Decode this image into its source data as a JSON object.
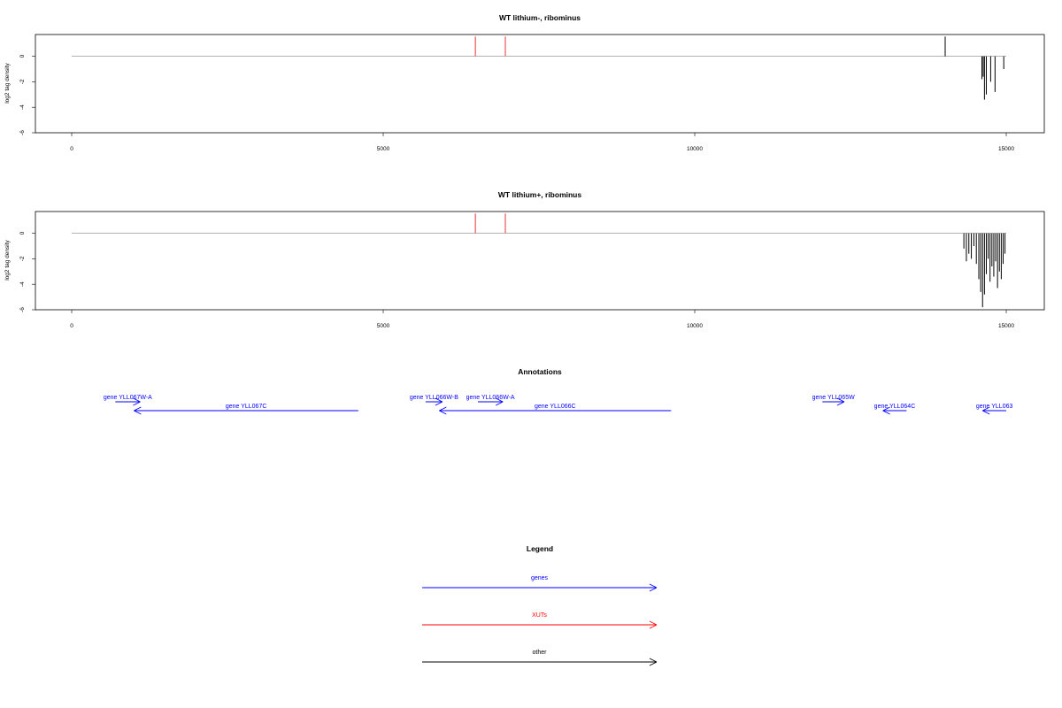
{
  "colors": {
    "genes": "#0000ff",
    "xuts": "#ff0000",
    "xut_bar": "#f08080",
    "other": "#000000",
    "baseline": "#999999",
    "signal": "#000000"
  },
  "chart_data": [
    {
      "type": "bar",
      "title": "WT lithium-, ribominus",
      "xlabel": "",
      "ylabel": "log2 tag density",
      "xlim": [
        0,
        15000
      ],
      "ylim": [
        -6,
        1.5
      ],
      "x_ticks": [
        0,
        5000,
        10000,
        15000
      ],
      "y_ticks": [
        0,
        -2,
        -4,
        -6
      ],
      "baseline": {
        "from": 0,
        "to": 15000,
        "y": 0
      },
      "xut_marks": [
        {
          "x": 6480,
          "y": 1.55
        },
        {
          "x": 6960,
          "y": 1.55
        }
      ],
      "other_marks": [
        {
          "x": 14020,
          "y": 1.55
        }
      ],
      "signal": [
        {
          "x": 14610,
          "y": -1.8
        },
        {
          "x": 14630,
          "y": -1.6
        },
        {
          "x": 14650,
          "y": -3.4
        },
        {
          "x": 14680,
          "y": -3.0
        },
        {
          "x": 14750,
          "y": -2.0
        },
        {
          "x": 14820,
          "y": -2.8
        },
        {
          "x": 14960,
          "y": -1.0
        }
      ]
    },
    {
      "type": "bar",
      "title": "WT lithium+, ribominus",
      "xlabel": "",
      "ylabel": "log2 tag density",
      "xlim": [
        0,
        15000
      ],
      "ylim": [
        -6,
        1.5
      ],
      "x_ticks": [
        0,
        5000,
        10000,
        15000
      ],
      "y_ticks": [
        0,
        -2,
        -4,
        -6
      ],
      "baseline": {
        "from": 0,
        "to": 15000,
        "y": 0
      },
      "xut_marks": [
        {
          "x": 6480,
          "y": 1.55
        },
        {
          "x": 6960,
          "y": 1.55
        }
      ],
      "other_marks": [],
      "signal": [
        {
          "x": 14320,
          "y": -1.2
        },
        {
          "x": 14360,
          "y": -2.2
        },
        {
          "x": 14400,
          "y": -1.6
        },
        {
          "x": 14440,
          "y": -2.0
        },
        {
          "x": 14480,
          "y": -1.0
        },
        {
          "x": 14520,
          "y": -2.4
        },
        {
          "x": 14560,
          "y": -3.6
        },
        {
          "x": 14590,
          "y": -4.6
        },
        {
          "x": 14620,
          "y": -5.8
        },
        {
          "x": 14650,
          "y": -4.8
        },
        {
          "x": 14680,
          "y": -3.2
        },
        {
          "x": 14710,
          "y": -2.0
        },
        {
          "x": 14740,
          "y": -3.8
        },
        {
          "x": 14770,
          "y": -2.6
        },
        {
          "x": 14800,
          "y": -3.4
        },
        {
          "x": 14830,
          "y": -2.2
        },
        {
          "x": 14860,
          "y": -4.3
        },
        {
          "x": 14890,
          "y": -3.0
        },
        {
          "x": 14920,
          "y": -3.6
        },
        {
          "x": 14950,
          "y": -2.4
        },
        {
          "x": 14980,
          "y": -1.6
        }
      ]
    },
    {
      "type": "annotation-track",
      "title": "Annotations",
      "xlim": [
        0,
        15000
      ],
      "genes": [
        {
          "label": "gene YLL067W-A",
          "start": 700,
          "end": 1100,
          "row": 1
        },
        {
          "label": "gene YLL067C",
          "start": 4600,
          "end": 1000,
          "row": 2
        },
        {
          "label": "gene YLL066W-B",
          "start": 5680,
          "end": 5950,
          "row": 1
        },
        {
          "label": "gene YLL066W-A",
          "start": 6520,
          "end": 6920,
          "row": 1
        },
        {
          "label": "gene YLL066C",
          "start": 9620,
          "end": 5900,
          "row": 2
        },
        {
          "label": "gene YLL065W",
          "start": 12050,
          "end": 12400,
          "row": 1
        },
        {
          "label": "gene YLL064C",
          "start": 13400,
          "end": 13020,
          "row": 2
        },
        {
          "label": "gene YLL063",
          "start": 15000,
          "end": 14620,
          "row": 2
        }
      ]
    },
    {
      "type": "legend",
      "title": "Legend",
      "entries": [
        {
          "label": "genes",
          "color_key": "genes"
        },
        {
          "label": "XUTs",
          "color_key": "xuts"
        },
        {
          "label": "other",
          "color_key": "other"
        }
      ]
    }
  ]
}
